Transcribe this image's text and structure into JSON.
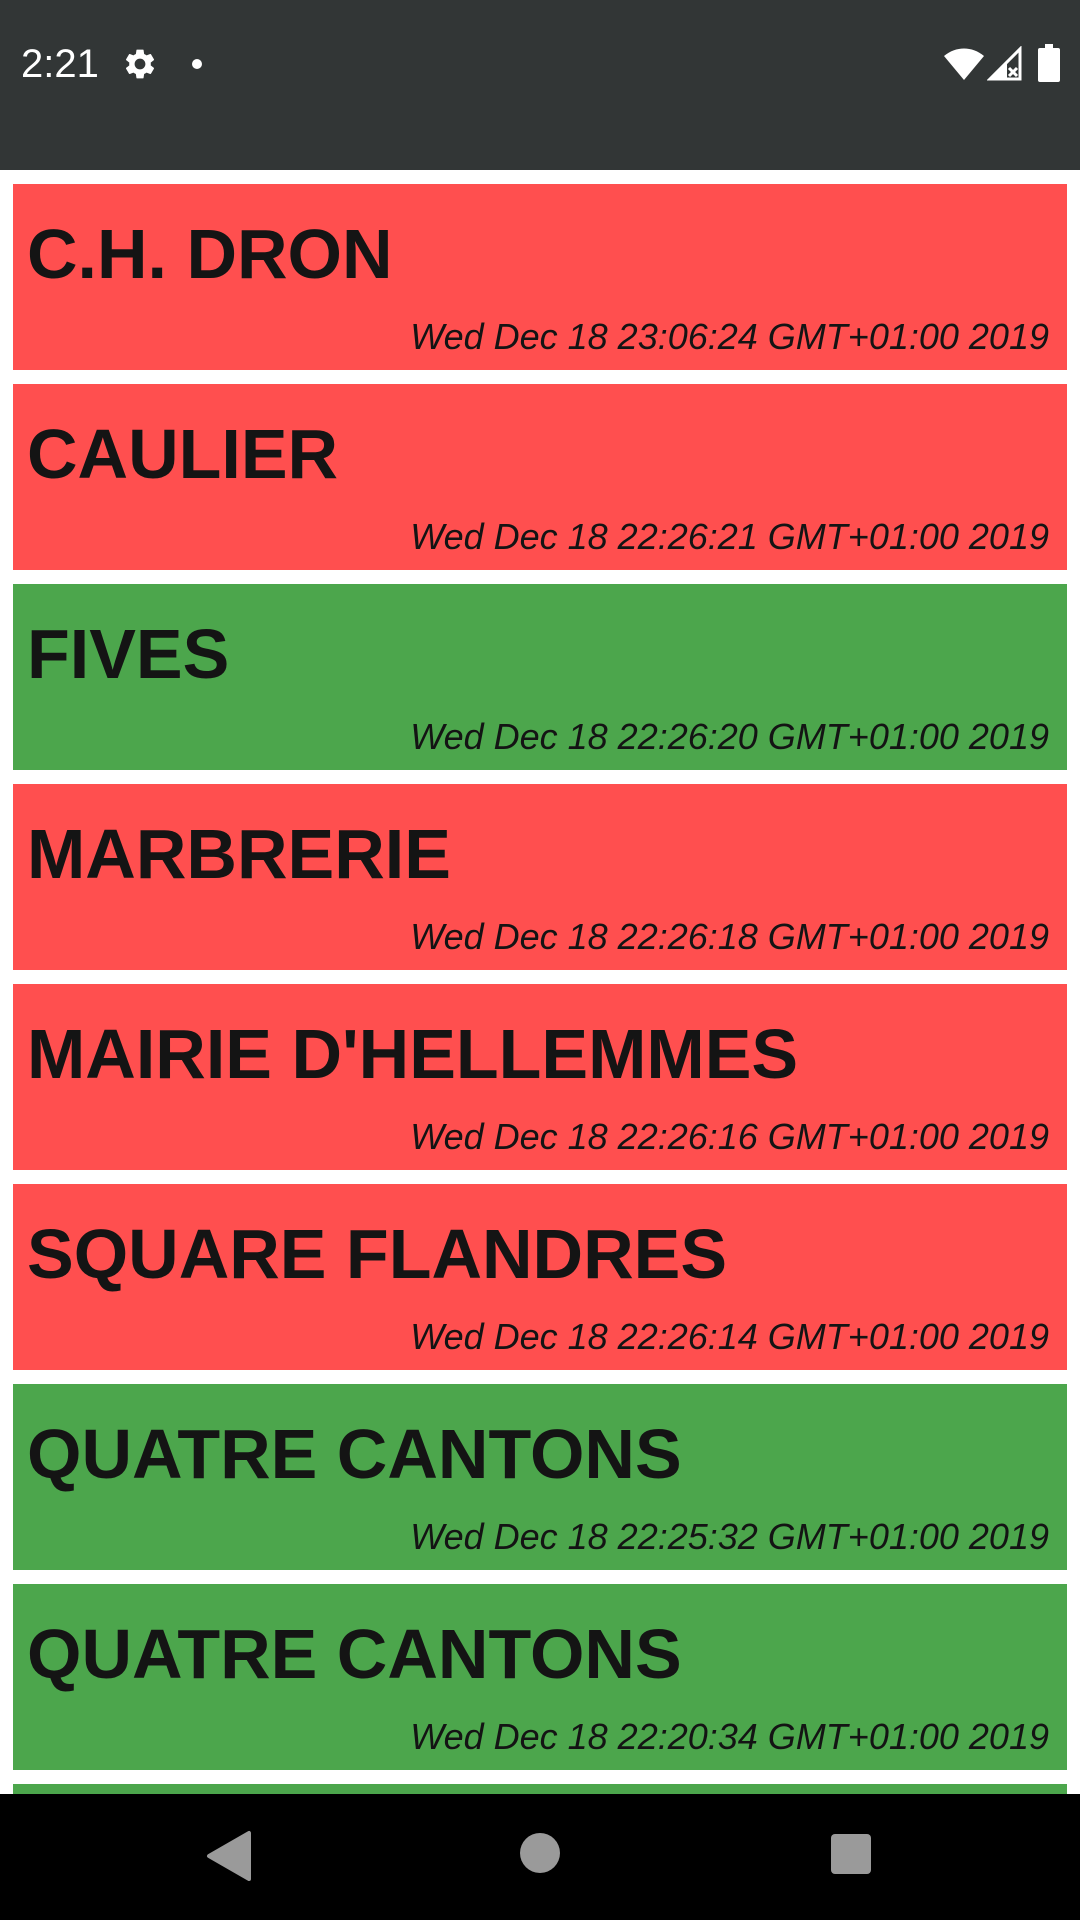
{
  "status_bar": {
    "time": "2:21",
    "icons": [
      "gear-icon",
      "notification-dot-icon",
      "wifi-icon",
      "signal-icon",
      "battery-icon"
    ]
  },
  "colors": {
    "status_bar": "#323636",
    "red_item": "#ff4f4f",
    "green_item": "#4ca64c",
    "nav_bar": "#000000"
  },
  "items": [
    {
      "title": "C.H. DRON",
      "date": "Wed Dec 18 23:06:24 GMT+01:00 2019",
      "status": "red"
    },
    {
      "title": "CAULIER",
      "date": "Wed Dec 18 22:26:21 GMT+01:00 2019",
      "status": "red"
    },
    {
      "title": "FIVES",
      "date": "Wed Dec 18 22:26:20 GMT+01:00 2019",
      "status": "green"
    },
    {
      "title": "MARBRERIE",
      "date": "Wed Dec 18 22:26:18 GMT+01:00 2019",
      "status": "red"
    },
    {
      "title": "MAIRIE D'HELLEMMES",
      "date": "Wed Dec 18 22:26:16 GMT+01:00 2019",
      "status": "red"
    },
    {
      "title": "SQUARE FLANDRES",
      "date": "Wed Dec 18 22:26:14 GMT+01:00 2019",
      "status": "red"
    },
    {
      "title": "QUATRE CANTONS",
      "date": "Wed Dec 18 22:25:32 GMT+01:00 2019",
      "status": "green"
    },
    {
      "title": "QUATRE CANTONS",
      "date": "Wed Dec 18 22:20:34 GMT+01:00 2019",
      "status": "green"
    },
    {
      "title": "",
      "date": "",
      "status": "green"
    }
  ],
  "nav_bar": {
    "icons": [
      "back-icon",
      "home-icon",
      "recents-icon"
    ]
  }
}
